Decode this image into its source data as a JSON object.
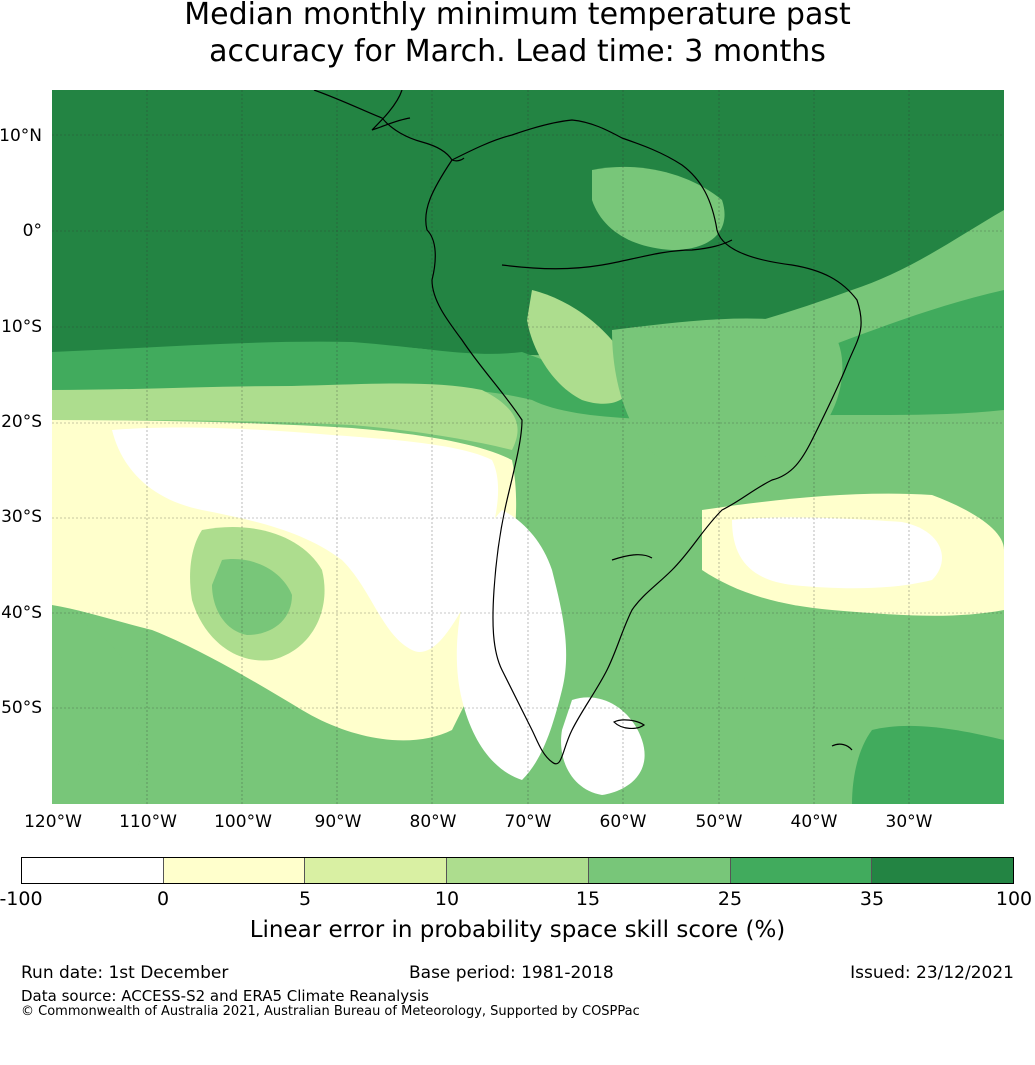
{
  "title_line1": "Median monthly minimum temperature past",
  "title_line2": "accuracy for March. Lead time: 3 months",
  "lat_labels": [
    "10°N",
    "0°",
    "10°S",
    "20°S",
    "30°S",
    "40°S",
    "50°S"
  ],
  "lon_labels": [
    "120°W",
    "110°W",
    "100°W",
    "90°W",
    "80°W",
    "70°W",
    "60°W",
    "50°W",
    "40°W",
    "30°W"
  ],
  "colorbar": {
    "ticks": [
      "-100",
      "0",
      "5",
      "10",
      "15",
      "25",
      "35",
      "100"
    ],
    "colors": [
      "#ffffff",
      "#ffffcc",
      "#d9f0a3",
      "#addd8e",
      "#78c679",
      "#41ab5d",
      "#238443"
    ],
    "label": "Linear error in probability space skill score (%)"
  },
  "footer": {
    "run_date": "Run date: 1st December",
    "base_period": "Base period: 1981-2018",
    "issued": "Issued: 23/12/2021",
    "data_source": "Data source: ACCESS-S2 and ERA5 Climate Reanalysis",
    "copyright": "© Commonwealth of Australia 2021, Australian Bureau of Meteorology, Supported by COSPPac"
  }
}
